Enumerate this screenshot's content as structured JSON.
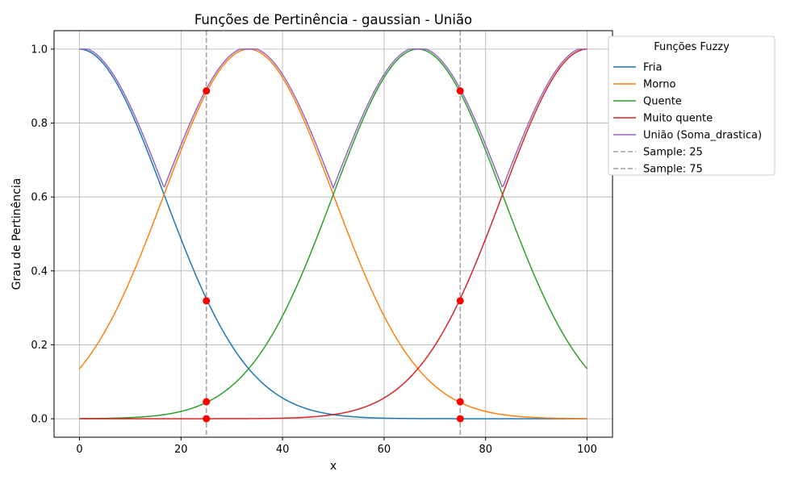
{
  "chart_data": {
    "type": "line",
    "title": "Funções de Pertinência - gaussian - União",
    "xlabel": "x",
    "ylabel": "Grau de Pertinência",
    "xlim": [
      -5,
      105
    ],
    "ylim": [
      -0.05,
      1.05
    ],
    "xticks": [
      0,
      20,
      40,
      60,
      80,
      100
    ],
    "yticks": [
      0.0,
      0.2,
      0.4,
      0.6,
      0.8,
      1.0
    ],
    "xtick_labels": [
      "0",
      "20",
      "40",
      "60",
      "80",
      "100"
    ],
    "ytick_labels": [
      "0.0",
      "0.2",
      "0.4",
      "0.6",
      "0.8",
      "1.0"
    ],
    "grid": true,
    "legend": {
      "title": "Funções Fuzzy",
      "placement": "outside upper right",
      "entries": [
        "Fria",
        "Morno",
        "Quente",
        "Muito quente",
        "União (Soma_drastica)",
        "Sample: 25",
        "Sample: 75"
      ]
    },
    "series": [
      {
        "name": "Fria",
        "color": "#1f77b4",
        "mean": 0,
        "sigma": 16.6667
      },
      {
        "name": "Morno",
        "color": "#ff7f0e",
        "mean": 33.3333,
        "sigma": 16.6667
      },
      {
        "name": "Quente",
        "color": "#2ca02c",
        "mean": 66.6667,
        "sigma": 16.6667
      },
      {
        "name": "Muito quente",
        "color": "#d62728",
        "mean": 100,
        "sigma": 16.6667
      },
      {
        "name": "União (Soma_drastica)",
        "color": "#9467bd"
      }
    ],
    "samples": [
      {
        "name": "Sample: 25",
        "x": 25,
        "color": "#a0a0a0",
        "points": [
          0.887,
          0.319,
          0.046,
          0.0
        ]
      },
      {
        "name": "Sample: 75",
        "x": 75,
        "color": "#a0a0a0",
        "points": [
          0.887,
          0.319,
          0.046,
          0.0
        ]
      }
    ],
    "marker_color": "#ff0000"
  }
}
